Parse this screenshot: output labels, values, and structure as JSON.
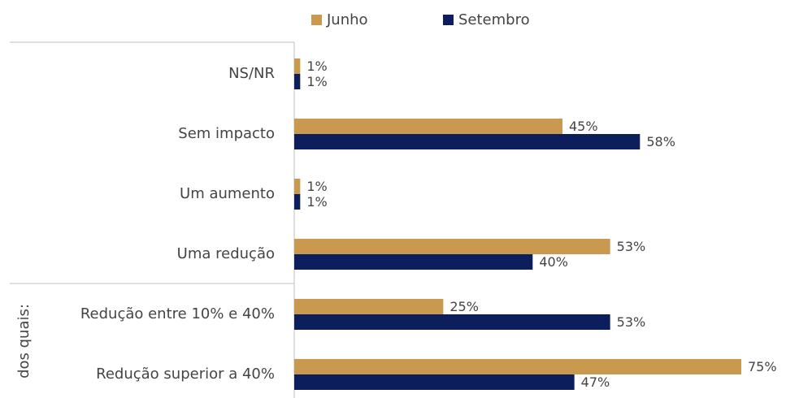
{
  "chart_data": {
    "type": "hbar",
    "categories": [
      "NS/NR",
      "Sem impacto",
      "Um aumento",
      "Uma redução",
      "Redução entre 10% e 40%",
      "Redução superior a 40%"
    ],
    "group_label": "dos quais:",
    "series": [
      {
        "name": "Junho",
        "color": "#c9994f",
        "values": [
          1,
          45,
          1,
          53,
          25,
          75
        ],
        "value_labels": [
          "1%",
          "45%",
          "1%",
          "53%",
          "25%",
          "75%"
        ]
      },
      {
        "name": "Setembro",
        "color": "#0c1f5c",
        "values": [
          1,
          58,
          1,
          40,
          53,
          47
        ],
        "value_labels": [
          "1%",
          "58%",
          "1%",
          "40%",
          "53%",
          "47%"
        ]
      }
    ],
    "legend": "top"
  }
}
